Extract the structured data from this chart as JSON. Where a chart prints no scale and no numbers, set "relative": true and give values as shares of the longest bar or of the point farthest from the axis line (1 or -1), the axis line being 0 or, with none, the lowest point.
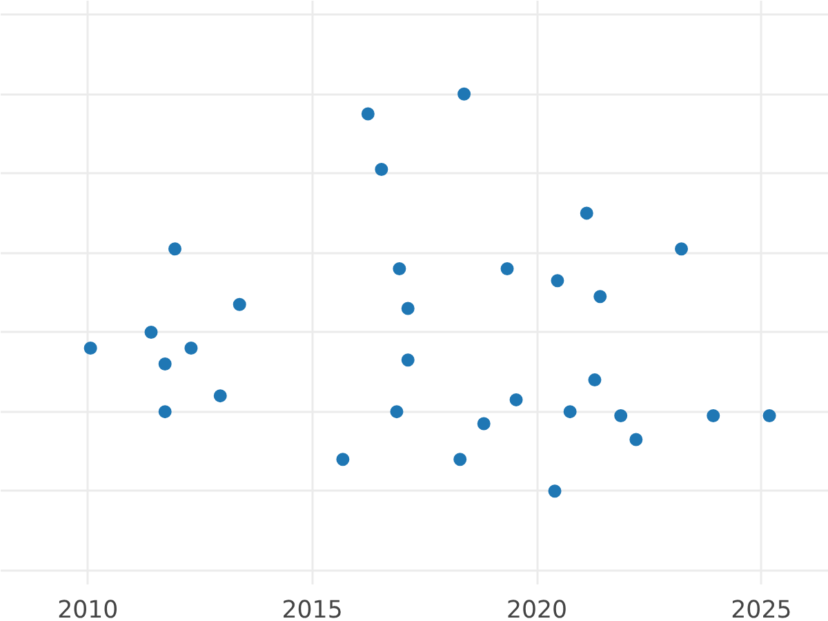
{
  "chart_data": {
    "type": "scatter",
    "relative": true,
    "color": "#1f77b4",
    "marker": "circle",
    "grid": true,
    "tick_labels": "x",
    "xlim": [
      2008.06,
      2026.5
    ],
    "xticks": [
      2010,
      2015,
      2020,
      2025
    ],
    "x": [
      2010.06,
      2011.41,
      2011.72,
      2011.72,
      2011.94,
      2012.3,
      2012.95,
      2013.38,
      2015.68,
      2016.24,
      2016.54,
      2016.88,
      2016.94,
      2017.13,
      2017.13,
      2018.29,
      2018.38,
      2018.82,
      2019.34,
      2019.54,
      2020.4,
      2020.46,
      2020.74,
      2021.11,
      2021.29,
      2021.41,
      2021.87,
      2022.21,
      2023.22,
      2023.93,
      2025.18
    ],
    "values": [
      0.36,
      0.4,
      0.32,
      0.2,
      0.61,
      0.36,
      0.24,
      0.47,
      0.08,
      0.95,
      0.81,
      0.2,
      0.56,
      0.46,
      0.33,
      0.08,
      1,
      0.17,
      0.56,
      0.23,
      0,
      0.53,
      0.2,
      0.7,
      0.28,
      0.49,
      0.19,
      0.13,
      0.61,
      0.19,
      0.19
    ]
  }
}
